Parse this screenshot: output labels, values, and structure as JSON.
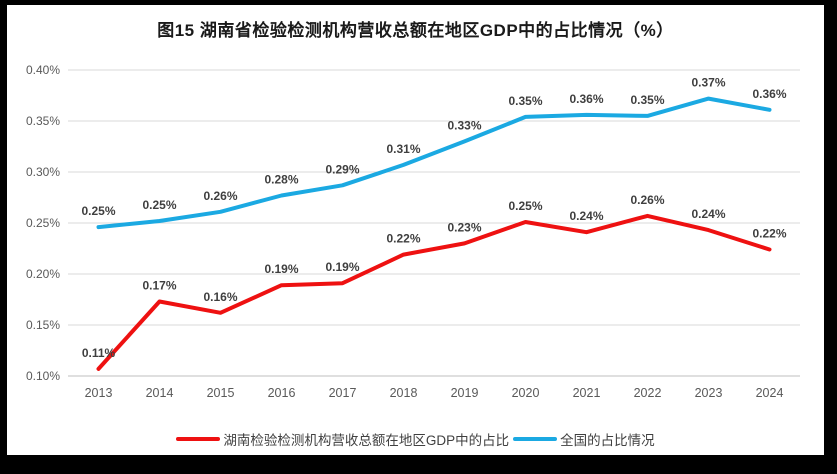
{
  "title": "图15 湖南省检验检测机构营收总额在地区GDP中的占比情况（%）",
  "colors": {
    "frame_background": "#000000",
    "card_background": "#ffffff",
    "gridline": "#d9d9d9",
    "axis_line": "#bfbfbf",
    "hunan_red": "#ee1111",
    "national_blue": "#1ba9e2",
    "tick_text": "#595959",
    "label_text": "#3f3f3f"
  },
  "chart_data": {
    "type": "line",
    "title": "图15 湖南省检验检测机构营收总额在地区GDP中的占比情况（%）",
    "categories": [
      "2013",
      "2014",
      "2015",
      "2016",
      "2017",
      "2018",
      "2019",
      "2020",
      "2021",
      "2022",
      "2023",
      "2024"
    ],
    "y_ticks": [
      "0.40%",
      "0.35%",
      "0.30%",
      "0.25%",
      "0.20%",
      "0.15%",
      "0.10%"
    ],
    "ylim": [
      0.1,
      0.4
    ],
    "grid": "horizontal",
    "legend_position": "bottom",
    "series": [
      {
        "name": "湖南检验检测机构营收总额在地区GDP中的占比",
        "color": "#ee1111",
        "values": [
          0.11,
          0.17,
          0.16,
          0.19,
          0.19,
          0.22,
          0.23,
          0.25,
          0.24,
          0.26,
          0.24,
          0.22
        ],
        "plot_values": [
          0.107,
          0.173,
          0.162,
          0.189,
          0.191,
          0.219,
          0.23,
          0.251,
          0.241,
          0.257,
          0.243,
          0.224
        ],
        "data_labels": [
          "0.11%",
          "0.17%",
          "0.16%",
          "0.19%",
          "0.19%",
          "0.22%",
          "0.23%",
          "0.25%",
          "0.24%",
          "0.26%",
          "0.24%",
          "0.22%"
        ]
      },
      {
        "name": "全国的占比情况",
        "color": "#1ba9e2",
        "values": [
          0.25,
          0.25,
          0.26,
          0.28,
          0.29,
          0.31,
          0.33,
          0.35,
          0.36,
          0.35,
          0.37,
          0.36
        ],
        "plot_values": [
          0.246,
          0.252,
          0.261,
          0.277,
          0.287,
          0.307,
          0.33,
          0.354,
          0.356,
          0.355,
          0.372,
          0.361
        ],
        "data_labels": [
          "0.25%",
          "0.25%",
          "0.26%",
          "0.28%",
          "0.29%",
          "0.31%",
          "0.33%",
          "0.35%",
          "0.36%",
          "0.35%",
          "0.37%",
          "0.36%"
        ]
      }
    ]
  }
}
